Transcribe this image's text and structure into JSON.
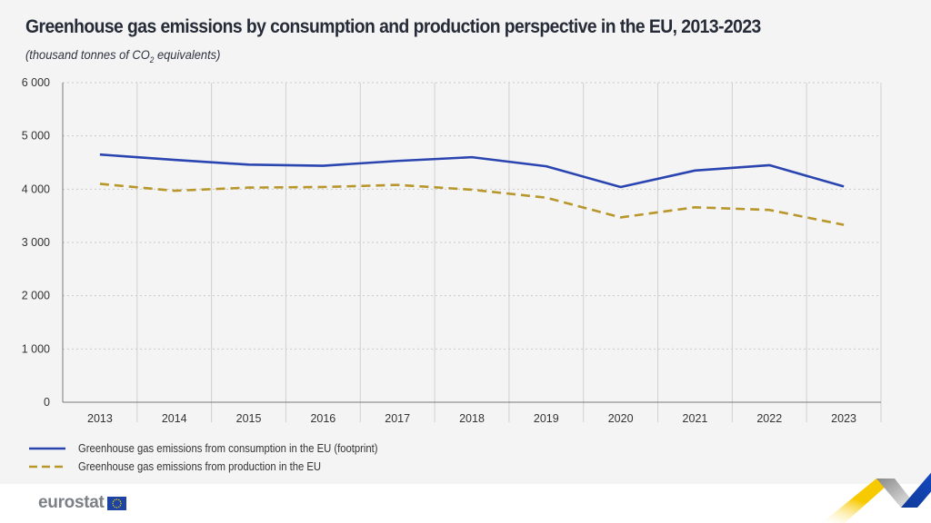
{
  "header": {
    "title": "Greenhouse gas emissions by consumption and production perspective in the EU, 2013-2023",
    "subtitle_pre": "(thousand tonnes of CO",
    "subtitle_sub": "2",
    "subtitle_post": " equivalents)"
  },
  "chart_data": {
    "type": "line",
    "title": "Greenhouse gas emissions by consumption and production perspective in the EU, 2013-2023",
    "ylabel": "thousand tonnes of CO2 equivalents",
    "xlabel": "",
    "x": [
      "2013",
      "2014",
      "2015",
      "2016",
      "2017",
      "2018",
      "2019",
      "2020",
      "2021",
      "2022",
      "2023"
    ],
    "ylim": [
      0,
      6000
    ],
    "yticks": [
      0,
      1000,
      2000,
      3000,
      4000,
      5000,
      6000
    ],
    "ytick_labels": [
      "0",
      "1 000",
      "2 000",
      "3 000",
      "4 000",
      "5 000",
      "6 000"
    ],
    "grid": true,
    "legend_position": "bottom-left",
    "series": [
      {
        "name": "Greenhouse gas emissions from consumption in the EU (footprint)",
        "color": "#2a44b0",
        "style": "solid",
        "values": [
          4650,
          4550,
          4460,
          4440,
          4530,
          4600,
          4430,
          4040,
          4350,
          4450,
          4050
        ]
      },
      {
        "name": "Greenhouse gas emissions from production in the EU",
        "color": "#b8972a",
        "style": "dashed",
        "values": [
          4100,
          3970,
          4030,
          4040,
          4080,
          3990,
          3840,
          3470,
          3660,
          3610,
          3330
        ]
      }
    ]
  },
  "footer": {
    "logo_text": "eurostat"
  }
}
